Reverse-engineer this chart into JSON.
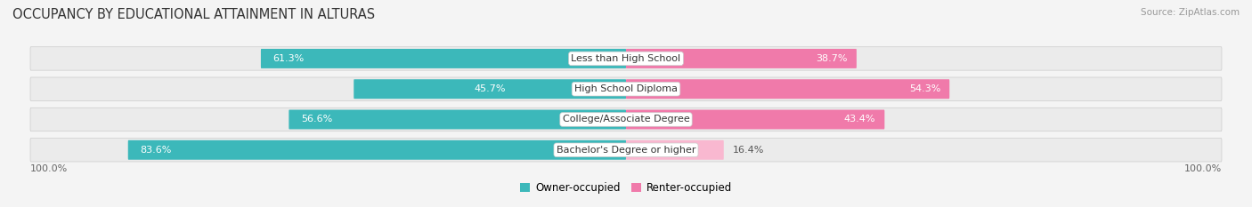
{
  "title": "OCCUPANCY BY EDUCATIONAL ATTAINMENT IN ALTURAS",
  "source": "Source: ZipAtlas.com",
  "categories": [
    "Less than High School",
    "High School Diploma",
    "College/Associate Degree",
    "Bachelor's Degree or higher"
  ],
  "owner_values": [
    61.3,
    45.7,
    56.6,
    83.6
  ],
  "renter_values": [
    38.7,
    54.3,
    43.4,
    16.4
  ],
  "owner_color": "#3cb8ba",
  "renter_color": "#f07aaa",
  "renter_color_light": "#f9b8d0",
  "background_color": "#f4f4f4",
  "row_bg_color": "#e8e8e8",
  "bar_height": 0.62,
  "title_fontsize": 10.5,
  "source_fontsize": 7.5,
  "label_fontsize": 8,
  "pct_fontsize": 8,
  "tick_fontsize": 8,
  "legend_fontsize": 8.5
}
